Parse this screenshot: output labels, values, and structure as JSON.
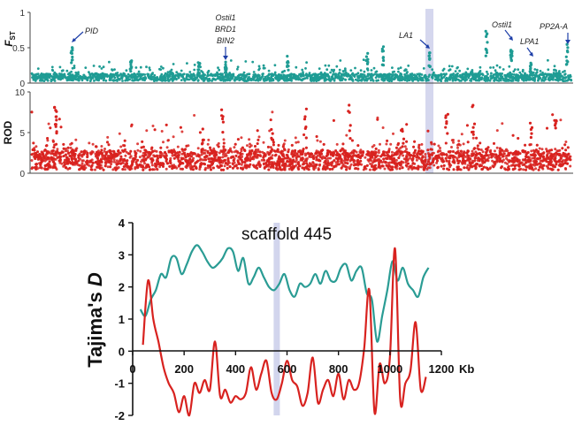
{
  "chart_data": [
    {
      "type": "scatter",
      "panel": "top",
      "ylabel": "F",
      "ylabel_sub": "ST",
      "ylim": [
        0,
        1
      ],
      "yticks": [
        "0",
        "0.5",
        "1"
      ],
      "color": "#1f9c94",
      "highlight_band_color": "#c7cae8",
      "annotations": [
        {
          "label": "PID"
        },
        {
          "label": "Ostil1"
        },
        {
          "label": "BRD1"
        },
        {
          "label": "BIN2"
        },
        {
          "label": "LA1"
        },
        {
          "label": "Ostil1"
        },
        {
          "label": "LPA1"
        },
        {
          "label": "PP2A-A"
        }
      ]
    },
    {
      "type": "scatter",
      "panel": "middle",
      "ylabel": "ROD",
      "ylim": [
        0,
        10
      ],
      "yticks": [
        "0",
        "5",
        "10"
      ],
      "color": "#d8221f"
    },
    {
      "type": "line",
      "panel": "bottom",
      "title": "scaffold 445",
      "ylabel": "Tajima's",
      "ylabel_italic": "D",
      "xlabel_unit": "Kb",
      "xlim": [
        0,
        1200
      ],
      "ylim": [
        -2,
        4
      ],
      "xticks": [
        "0",
        "200",
        "400",
        "600",
        "800",
        "1000",
        "1200"
      ],
      "yticks": [
        "-2",
        "-1",
        "0",
        "1",
        "2",
        "3",
        "4"
      ],
      "highlight_x": 560,
      "series": [
        {
          "color": "#2a9c94",
          "x": [
            30,
            50,
            70,
            90,
            110,
            130,
            150,
            170,
            190,
            210,
            230,
            250,
            270,
            290,
            310,
            330,
            350,
            370,
            390,
            410,
            430,
            450,
            470,
            490,
            510,
            530,
            550,
            570,
            590,
            610,
            630,
            650,
            670,
            690,
            710,
            730,
            750,
            770,
            790,
            810,
            830,
            850,
            870,
            890,
            910,
            930,
            950,
            970,
            990,
            1010,
            1030,
            1050,
            1070,
            1090,
            1110,
            1130,
            1150
          ],
          "y": [
            1.3,
            1.1,
            1.6,
            1.9,
            2.4,
            2.3,
            2.9,
            2.9,
            2.4,
            2.7,
            3.1,
            3.3,
            3.1,
            2.8,
            2.6,
            2.7,
            2.9,
            3.2,
            3.1,
            2.5,
            2.9,
            2.1,
            2.3,
            2.6,
            2.3,
            2.0,
            1.9,
            2.1,
            2.4,
            1.9,
            1.7,
            2.1,
            2.0,
            2.1,
            2.4,
            2.1,
            2.5,
            2.2,
            2.2,
            2.6,
            2.7,
            2.2,
            2.5,
            2.6,
            1.8,
            1.6,
            0.3,
            1.1,
            1.9,
            2.8,
            2.2,
            2.6,
            2.1,
            1.9,
            1.7,
            2.3,
            2.6
          ]
        },
        {
          "color": "#d8221f",
          "x": [
            40,
            60,
            80,
            100,
            120,
            140,
            160,
            180,
            200,
            220,
            240,
            260,
            280,
            300,
            320,
            340,
            360,
            380,
            400,
            420,
            440,
            460,
            480,
            500,
            520,
            540,
            560,
            580,
            600,
            620,
            640,
            660,
            680,
            700,
            720,
            740,
            760,
            780,
            800,
            820,
            840,
            860,
            880,
            900,
            920,
            940,
            960,
            980,
            1000,
            1020,
            1040,
            1060,
            1080,
            1100,
            1120,
            1140
          ],
          "y": [
            0.2,
            2.2,
            1.0,
            0.3,
            -0.5,
            -1.0,
            -1.3,
            -1.9,
            -1.4,
            -2.0,
            -1.0,
            -1.3,
            -0.9,
            -1.2,
            0.3,
            -1.4,
            -1.2,
            -1.6,
            -1.4,
            -1.5,
            -1.3,
            -0.5,
            -1.2,
            -0.7,
            -0.3,
            -1.3,
            -1.5,
            -1.0,
            -0.3,
            -0.9,
            -1.1,
            -1.7,
            -1.3,
            -0.2,
            -1.6,
            -1.2,
            -0.9,
            -1.4,
            -0.7,
            -1.5,
            -0.9,
            -1.2,
            -1.0,
            0.1,
            1.9,
            -1.9,
            -0.4,
            -1.0,
            -0.2,
            3.2,
            -1.5,
            -1.0,
            -0.6,
            0.9,
            -1.2,
            -0.8
          ]
        }
      ]
    }
  ]
}
